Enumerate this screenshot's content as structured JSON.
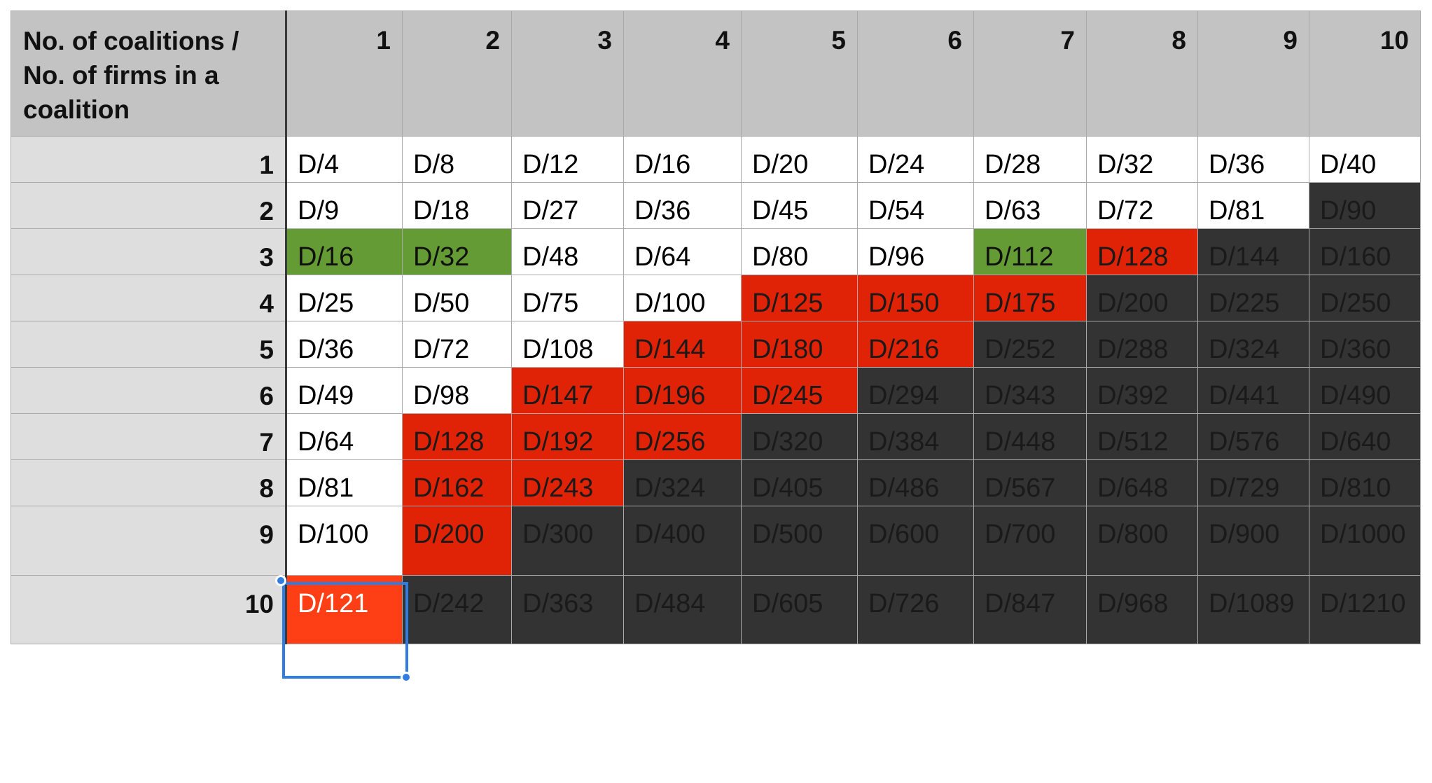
{
  "corner_header": "No. of coalitions / No. of firms in a coalition",
  "column_headers": [
    "1",
    "2",
    "3",
    "4",
    "5",
    "6",
    "7",
    "8",
    "9",
    "10"
  ],
  "row_headers": [
    "1",
    "2",
    "3",
    "4",
    "5",
    "6",
    "7",
    "8",
    "9",
    "10"
  ],
  "cells": [
    [
      "D/4",
      "D/8",
      "D/12",
      "D/16",
      "D/20",
      "D/24",
      "D/28",
      "D/32",
      "D/36",
      "D/40"
    ],
    [
      "D/9",
      "D/18",
      "D/27",
      "D/36",
      "D/45",
      "D/54",
      "D/63",
      "D/72",
      "D/81",
      "D/90"
    ],
    [
      "D/16",
      "D/32",
      "D/48",
      "D/64",
      "D/80",
      "D/96",
      "D/112",
      "D/128",
      "D/144",
      "D/160"
    ],
    [
      "D/25",
      "D/50",
      "D/75",
      "D/100",
      "D/125",
      "D/150",
      "D/175",
      "D/200",
      "D/225",
      "D/250"
    ],
    [
      "D/36",
      "D/72",
      "D/108",
      "D/144",
      "D/180",
      "D/216",
      "D/252",
      "D/288",
      "D/324",
      "D/360"
    ],
    [
      "D/49",
      "D/98",
      "D/147",
      "D/196",
      "D/245",
      "D/294",
      "D/343",
      "D/392",
      "D/441",
      "D/490"
    ],
    [
      "D/64",
      "D/128",
      "D/192",
      "D/256",
      "D/320",
      "D/384",
      "D/448",
      "D/512",
      "D/576",
      "D/640"
    ],
    [
      "D/81",
      "D/162",
      "D/243",
      "D/324",
      "D/405",
      "D/486",
      "D/567",
      "D/648",
      "D/729",
      "D/810"
    ],
    [
      "D/100",
      "D/200",
      "D/300",
      "D/400",
      "D/500",
      "D/600",
      "D/700",
      "D/800",
      "D/900",
      "D/1000"
    ],
    [
      "D/121",
      "D/242",
      "D/363",
      "D/484",
      "D/605",
      "D/726",
      "D/847",
      "D/968",
      "D/1089",
      "D/1210"
    ]
  ],
  "cell_colors": [
    [
      "white",
      "white",
      "white",
      "white",
      "white",
      "white",
      "white",
      "white",
      "white",
      "white"
    ],
    [
      "white",
      "white",
      "white",
      "white",
      "white",
      "white",
      "white",
      "white",
      "white",
      "dark"
    ],
    [
      "green",
      "green",
      "white",
      "white",
      "white",
      "white",
      "green",
      "red",
      "dark",
      "dark"
    ],
    [
      "white",
      "white",
      "white",
      "white",
      "red",
      "red",
      "red",
      "dark",
      "dark",
      "dark"
    ],
    [
      "white",
      "white",
      "white",
      "red",
      "red",
      "red",
      "dark",
      "dark",
      "dark",
      "dark"
    ],
    [
      "white",
      "white",
      "red",
      "red",
      "red",
      "dark",
      "dark",
      "dark",
      "dark",
      "dark"
    ],
    [
      "white",
      "red",
      "red",
      "red",
      "dark",
      "dark",
      "dark",
      "dark",
      "dark",
      "dark"
    ],
    [
      "white",
      "red",
      "red",
      "dark",
      "dark",
      "dark",
      "dark",
      "dark",
      "dark",
      "dark"
    ],
    [
      "white",
      "red",
      "dark",
      "dark",
      "dark",
      "dark",
      "dark",
      "dark",
      "dark",
      "dark"
    ],
    [
      "orange",
      "dark",
      "dark",
      "dark",
      "dark",
      "dark",
      "dark",
      "dark",
      "dark",
      "dark"
    ]
  ],
  "palette": {
    "white": "#ffffff",
    "green": "#659b35",
    "red": "#e02307",
    "orange": "#fe3f15",
    "dark": "#333333",
    "header_bg": "#c2c3c2",
    "row_header_bg": "#dedede",
    "selection": "#2f7de0"
  },
  "selected_cell": {
    "row": "9",
    "column": "1",
    "value": "D/100"
  }
}
